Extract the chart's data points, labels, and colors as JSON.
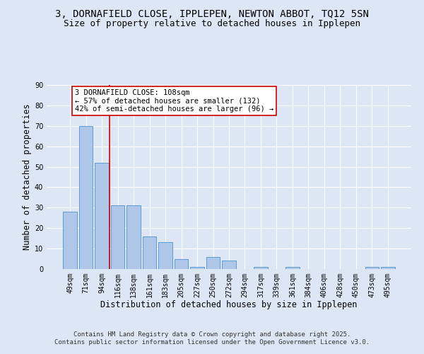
{
  "title": "3, DORNAFIELD CLOSE, IPPLEPEN, NEWTON ABBOT, TQ12 5SN",
  "subtitle": "Size of property relative to detached houses in Ipplepen",
  "categories": [
    "49sqm",
    "71sqm",
    "94sqm",
    "116sqm",
    "138sqm",
    "161sqm",
    "183sqm",
    "205sqm",
    "227sqm",
    "250sqm",
    "272sqm",
    "294sqm",
    "317sqm",
    "339sqm",
    "361sqm",
    "384sqm",
    "406sqm",
    "428sqm",
    "450sqm",
    "473sqm",
    "495sqm"
  ],
  "values": [
    28,
    70,
    52,
    31,
    31,
    16,
    13,
    5,
    1,
    6,
    4,
    0,
    1,
    0,
    1,
    0,
    0,
    0,
    0,
    1,
    1
  ],
  "bar_color": "#aec6e8",
  "bar_edge_color": "#5b9bd5",
  "background_color": "#dce6f5",
  "grid_color": "#ffffff",
  "xlabel": "Distribution of detached houses by size in Ipplepen",
  "ylabel": "Number of detached properties",
  "ylim": [
    0,
    90
  ],
  "yticks": [
    0,
    10,
    20,
    30,
    40,
    50,
    60,
    70,
    80,
    90
  ],
  "vline_x_index": 3,
  "vline_color": "#cc0000",
  "annotation_text": "3 DORNAFIELD CLOSE: 108sqm\n← 57% of detached houses are smaller (132)\n42% of semi-detached houses are larger (96) →",
  "annotation_box_color": "#ffffff",
  "annotation_box_edge": "#cc0000",
  "footer_text": "Contains HM Land Registry data © Crown copyright and database right 2025.\nContains public sector information licensed under the Open Government Licence v3.0.",
  "title_fontsize": 10,
  "subtitle_fontsize": 9,
  "xlabel_fontsize": 8.5,
  "ylabel_fontsize": 8.5,
  "tick_fontsize": 7,
  "annotation_fontsize": 7.5,
  "footer_fontsize": 6.5
}
